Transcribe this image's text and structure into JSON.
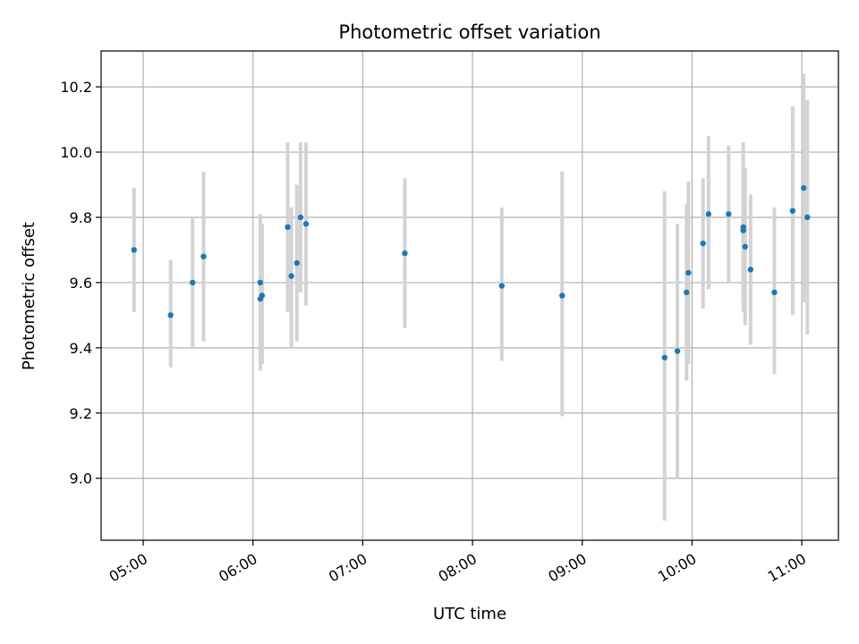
{
  "chart_data": {
    "type": "scatter",
    "title": "Photometric offset variation",
    "xlabel": "UTC time",
    "ylabel": "Photometric offset",
    "x_ticks": [
      "05:00",
      "06:00",
      "07:00",
      "08:00",
      "09:00",
      "10:00",
      "11:00"
    ],
    "y_ticks": [
      "9.0",
      "9.2",
      "9.4",
      "9.6",
      "9.8",
      "10.0",
      "10.2"
    ],
    "ylim": [
      8.81,
      10.31
    ],
    "xlim": [
      "04:37",
      "11:20"
    ],
    "grid": true,
    "marker_color": "#1f77b4",
    "errorbar_color": "#d3d3d3",
    "series": [
      {
        "points": [
          {
            "x": "04:55",
            "y": 9.7,
            "ylow": 9.51,
            "yhigh": 9.89
          },
          {
            "x": "05:15",
            "y": 9.5,
            "ylow": 9.34,
            "yhigh": 9.67
          },
          {
            "x": "05:27",
            "y": 9.6,
            "ylow": 9.4,
            "yhigh": 9.8
          },
          {
            "x": "05:33",
            "y": 9.68,
            "ylow": 9.42,
            "yhigh": 9.94
          },
          {
            "x": "06:04",
            "y": 9.55,
            "ylow": 9.33,
            "yhigh": 9.78
          },
          {
            "x": "06:04",
            "y": 9.6,
            "ylow": 9.34,
            "yhigh": 9.81
          },
          {
            "x": "06:05",
            "y": 9.56,
            "ylow": 9.35,
            "yhigh": 9.78
          },
          {
            "x": "06:19",
            "y": 9.77,
            "ylow": 9.51,
            "yhigh": 10.03
          },
          {
            "x": "06:21",
            "y": 9.62,
            "ylow": 9.4,
            "yhigh": 9.83
          },
          {
            "x": "06:24",
            "y": 9.66,
            "ylow": 9.42,
            "yhigh": 9.9
          },
          {
            "x": "06:26",
            "y": 9.8,
            "ylow": 9.57,
            "yhigh": 10.03
          },
          {
            "x": "06:29",
            "y": 9.78,
            "ylow": 9.53,
            "yhigh": 10.03
          },
          {
            "x": "07:23",
            "y": 9.69,
            "ylow": 9.46,
            "yhigh": 9.92
          },
          {
            "x": "08:16",
            "y": 9.59,
            "ylow": 9.36,
            "yhigh": 9.83
          },
          {
            "x": "08:49",
            "y": 9.56,
            "ylow": 9.19,
            "yhigh": 9.94
          },
          {
            "x": "09:45",
            "y": 9.37,
            "ylow": 8.87,
            "yhigh": 9.88
          },
          {
            "x": "09:52",
            "y": 9.39,
            "ylow": 9.0,
            "yhigh": 9.78
          },
          {
            "x": "09:57",
            "y": 9.57,
            "ylow": 9.3,
            "yhigh": 9.84
          },
          {
            "x": "09:58",
            "y": 9.63,
            "ylow": 9.35,
            "yhigh": 9.91
          },
          {
            "x": "10:06",
            "y": 9.72,
            "ylow": 9.52,
            "yhigh": 9.92
          },
          {
            "x": "10:09",
            "y": 9.81,
            "ylow": 9.58,
            "yhigh": 10.05
          },
          {
            "x": "10:20",
            "y": 9.81,
            "ylow": 9.6,
            "yhigh": 10.02
          },
          {
            "x": "10:28",
            "y": 9.77,
            "ylow": 9.51,
            "yhigh": 10.03
          },
          {
            "x": "10:28",
            "y": 9.76,
            "ylow": 9.55,
            "yhigh": 9.98
          },
          {
            "x": "10:29",
            "y": 9.71,
            "ylow": 9.47,
            "yhigh": 9.95
          },
          {
            "x": "10:32",
            "y": 9.64,
            "ylow": 9.41,
            "yhigh": 9.87
          },
          {
            "x": "10:45",
            "y": 9.57,
            "ylow": 9.32,
            "yhigh": 9.83
          },
          {
            "x": "10:55",
            "y": 9.82,
            "ylow": 9.5,
            "yhigh": 10.14
          },
          {
            "x": "11:01",
            "y": 9.89,
            "ylow": 9.54,
            "yhigh": 10.24
          },
          {
            "x": "11:03",
            "y": 9.8,
            "ylow": 9.44,
            "yhigh": 10.16
          }
        ]
      }
    ]
  }
}
